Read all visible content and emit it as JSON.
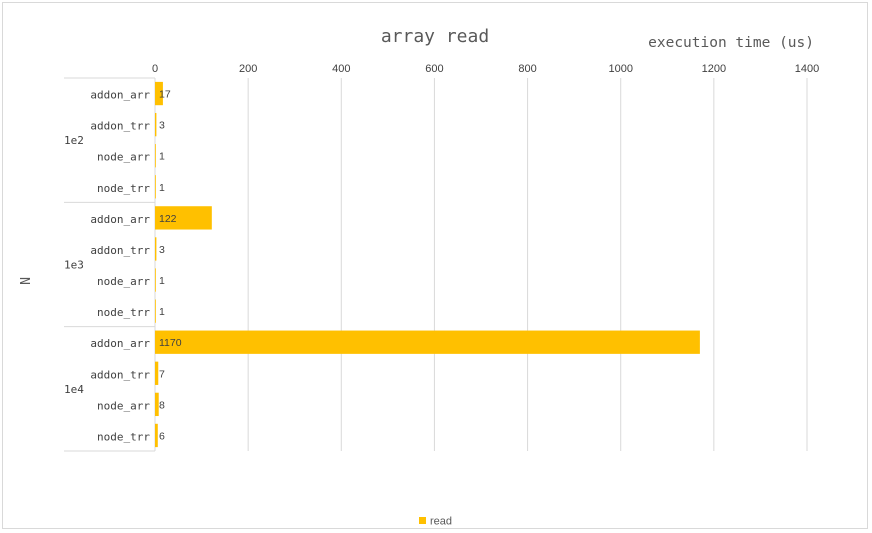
{
  "chart_data": {
    "type": "bar",
    "orientation": "horizontal",
    "title": "array read",
    "xlabel": "execution time (us)",
    "ylabel": "N",
    "xlim": [
      0,
      1400
    ],
    "xticks": [
      0,
      200,
      400,
      600,
      800,
      1000,
      1200,
      1400
    ],
    "grid": true,
    "legend_position": "bottom",
    "colors": {
      "read": "#ffc000",
      "grid": "#d9d9d9",
      "text": "#404040"
    },
    "groups": [
      {
        "label": "1e2",
        "categories": [
          "addon_arr",
          "addon_trr",
          "node_arr",
          "node_trr"
        ],
        "values": [
          17,
          3,
          1,
          1
        ]
      },
      {
        "label": "1e3",
        "categories": [
          "addon_arr",
          "addon_trr",
          "node_arr",
          "node_trr"
        ],
        "values": [
          122,
          3,
          1,
          1
        ]
      },
      {
        "label": "1e4",
        "categories": [
          "addon_arr",
          "addon_trr",
          "node_arr",
          "node_trr"
        ],
        "values": [
          1170,
          7,
          8,
          6
        ]
      }
    ],
    "series": [
      {
        "name": "read"
      }
    ]
  }
}
